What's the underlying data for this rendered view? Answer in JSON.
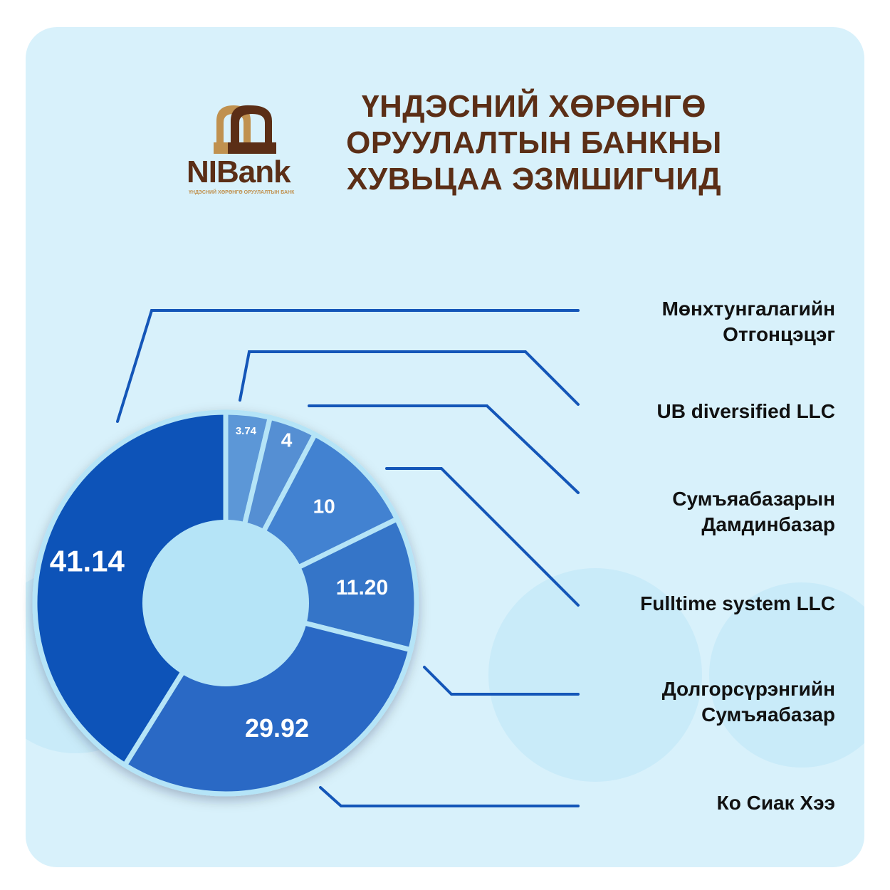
{
  "header": {
    "title_lines": [
      "ҮНДЭСНИЙ ХӨРӨНГӨ",
      "ОРУУЛАЛТЫН БАНКНЫ",
      "ХУВЬЦАА ЭЗМШИГЧИД"
    ],
    "logo_text": "NIBank",
    "logo_subtext": "ҮНДЭСНИЙ ХӨРӨНГӨ ОРУУЛАЛТЫН БАНК"
  },
  "colors": {
    "title": "#5b2e16",
    "background": "#d8f1fb",
    "leader": "#1456b8",
    "gap": "#b5e4f7"
  },
  "chart_data": {
    "type": "pie",
    "donut": true,
    "title": "",
    "slices": [
      {
        "label": "UB diversified LLC",
        "value": 3.74,
        "display": "3.74",
        "color": "#5c97d7"
      },
      {
        "label": "Сумъяабазарын Дамдинбазар",
        "value": 4,
        "display": "4",
        "color": "#548fd3"
      },
      {
        "label": "Fulltime system LLC",
        "value": 10,
        "display": "10",
        "color": "#4382d1"
      },
      {
        "label": "Долгорсүрэнгийн Сумъяабазар",
        "value": 11.2,
        "display": "11.20",
        "color": "#3574c8"
      },
      {
        "label": "Ко Сиак Хээ",
        "value": 29.92,
        "display": "29.92",
        "color": "#2a69c5"
      },
      {
        "label": "Мөнхтунгалагийн Отгонцэцэг",
        "value": 41.14,
        "display": "41.14",
        "color": "#0f52b8"
      }
    ],
    "legend": [
      {
        "lines": [
          "Мөнхтунгалагийн",
          "Отгонцэцэг"
        ]
      },
      {
        "lines": [
          "UB diversified LLC"
        ]
      },
      {
        "lines": [
          "Сумъяабазарын",
          "Дамдинбазар"
        ]
      },
      {
        "lines": [
          "Fulltime system LLC"
        ]
      },
      {
        "lines": [
          "Долгорсүрэнгийн",
          "Сумъяабазар"
        ]
      },
      {
        "lines": [
          "Ко Сиак Хээ"
        ]
      }
    ]
  }
}
